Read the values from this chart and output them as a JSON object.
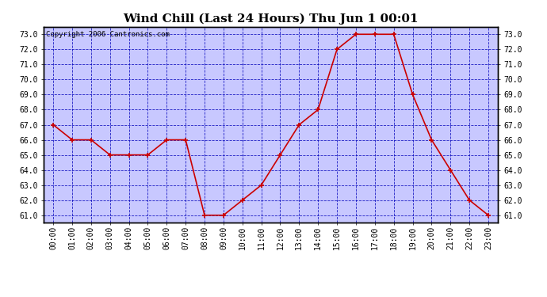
{
  "title": "Wind Chill (Last 24 Hours) Thu Jun 1 00:01",
  "copyright_text": "Copyright 2006 Cantronics.com",
  "hours": [
    0,
    1,
    2,
    3,
    4,
    5,
    6,
    7,
    8,
    9,
    10,
    11,
    12,
    13,
    14,
    15,
    16,
    17,
    18,
    19,
    20,
    21,
    22,
    23
  ],
  "values": [
    67.0,
    66.0,
    66.0,
    65.0,
    65.0,
    65.0,
    66.0,
    66.0,
    61.0,
    61.0,
    62.0,
    63.0,
    65.0,
    67.0,
    68.0,
    72.0,
    73.0,
    73.0,
    73.0,
    69.0,
    66.0,
    64.0,
    62.0,
    61.0
  ],
  "xlabels": [
    "00:00",
    "01:00",
    "02:00",
    "03:00",
    "04:00",
    "05:00",
    "06:00",
    "07:00",
    "08:00",
    "09:00",
    "10:00",
    "11:00",
    "12:00",
    "13:00",
    "14:00",
    "15:00",
    "16:00",
    "17:00",
    "18:00",
    "19:00",
    "20:00",
    "21:00",
    "22:00",
    "23:00"
  ],
  "ylim": [
    60.5,
    73.5
  ],
  "yticks": [
    61.0,
    62.0,
    63.0,
    64.0,
    65.0,
    66.0,
    67.0,
    68.0,
    69.0,
    70.0,
    71.0,
    72.0,
    73.0
  ],
  "line_color": "#cc0000",
  "marker_color": "#cc0000",
  "plot_bg_color": "#c8c8ff",
  "grid_color": "#0000bb",
  "title_fontsize": 11,
  "tick_fontsize": 7,
  "copyright_fontsize": 6.5
}
